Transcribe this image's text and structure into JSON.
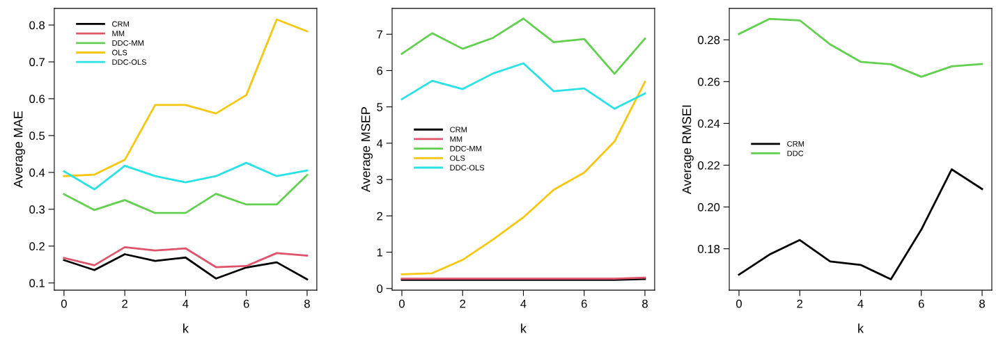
{
  "chart_data": [
    {
      "type": "line",
      "xlabel": "k",
      "ylabel": "Average MAE",
      "x": [
        0,
        1,
        2,
        3,
        4,
        5,
        6,
        7,
        8
      ],
      "xlim": [
        -0.32,
        8.32
      ],
      "xticks": [
        0,
        2,
        4,
        6,
        8
      ],
      "ylim": [
        0.0805,
        0.845
      ],
      "yticks": [
        0.1,
        0.2,
        0.3,
        0.4,
        0.5,
        0.6,
        0.7,
        0.8
      ],
      "legend": "top left",
      "grid": false,
      "series": [
        {
          "name": "CRM",
          "color": "#000000",
          "values": [
            0.162,
            0.135,
            0.178,
            0.16,
            0.169,
            0.112,
            0.142,
            0.156,
            0.11
          ]
        },
        {
          "name": "MM",
          "color": "#df536b",
          "values": [
            0.168,
            0.148,
            0.197,
            0.188,
            0.194,
            0.143,
            0.146,
            0.181,
            0.174
          ]
        },
        {
          "name": "DDC-MM",
          "color": "#61d04f",
          "values": [
            0.341,
            0.298,
            0.325,
            0.29,
            0.29,
            0.342,
            0.313,
            0.313,
            0.393
          ]
        },
        {
          "name": "OLS",
          "color": "#f5c710",
          "values": [
            0.39,
            0.394,
            0.434,
            0.583,
            0.583,
            0.56,
            0.61,
            0.815,
            0.783
          ]
        },
        {
          "name": "DDC-OLS",
          "color": "#28e2e5",
          "values": [
            0.403,
            0.354,
            0.418,
            0.39,
            0.373,
            0.39,
            0.426,
            0.39,
            0.405
          ]
        }
      ]
    },
    {
      "type": "line",
      "xlabel": "k",
      "ylabel": "Average MSEP",
      "x": [
        0,
        1,
        2,
        3,
        4,
        5,
        6,
        7,
        8
      ],
      "xlim": [
        -0.32,
        8.32
      ],
      "xticks": [
        0,
        2,
        4,
        6,
        8
      ],
      "ylim": [
        -0.045,
        7.71
      ],
      "yticks": [
        0,
        1,
        2,
        3,
        4,
        5,
        6,
        7
      ],
      "legend": "left",
      "grid": false,
      "series": [
        {
          "name": "CRM",
          "color": "#000000",
          "values": [
            0.24,
            0.24,
            0.24,
            0.24,
            0.24,
            0.24,
            0.24,
            0.24,
            0.26
          ]
        },
        {
          "name": "MM",
          "color": "#df536b",
          "values": [
            0.27,
            0.27,
            0.27,
            0.27,
            0.27,
            0.27,
            0.27,
            0.27,
            0.3
          ]
        },
        {
          "name": "DDC-MM",
          "color": "#61d04f",
          "values": [
            6.46,
            7.03,
            6.6,
            6.9,
            7.43,
            6.78,
            6.87,
            5.91,
            6.88
          ]
        },
        {
          "name": "OLS",
          "color": "#f5c710",
          "values": [
            0.39,
            0.42,
            0.79,
            1.35,
            1.96,
            2.72,
            3.19,
            4.05,
            5.69
          ]
        },
        {
          "name": "DDC-OLS",
          "color": "#28e2e5",
          "values": [
            5.21,
            5.72,
            5.49,
            5.92,
            6.2,
            5.43,
            5.51,
            4.95,
            5.37
          ]
        }
      ]
    },
    {
      "type": "line",
      "xlabel": "k",
      "ylabel": "Average RMSEI",
      "x": [
        0,
        1,
        2,
        3,
        4,
        5,
        6,
        7,
        8
      ],
      "xlim": [
        -0.32,
        8.32
      ],
      "xticks": [
        0,
        2,
        4,
        6,
        8
      ],
      "ylim": [
        0.1602,
        0.295
      ],
      "yticks": [
        {
          "value": 0.18,
          "label": "0.18"
        },
        {
          "value": 0.2,
          "label": "0.20"
        },
        {
          "value": 0.22,
          "label": "0.22"
        },
        {
          "value": 0.24,
          "label": "0.24"
        },
        {
          "value": 0.26,
          "label": "0.26"
        },
        {
          "value": 0.28,
          "label": "0.28"
        }
      ],
      "legend": "left",
      "grid": false,
      "series": [
        {
          "name": "CRM",
          "color": "#000000",
          "values": [
            0.1676,
            0.1772,
            0.1842,
            0.1739,
            0.1723,
            0.1654,
            0.1892,
            0.218,
            0.2086
          ]
        },
        {
          "name": "DDC",
          "color": "#61d04f",
          "values": [
            0.2828,
            0.29,
            0.2893,
            0.2778,
            0.2695,
            0.2683,
            0.2623,
            0.2673,
            0.2684
          ]
        }
      ]
    }
  ]
}
